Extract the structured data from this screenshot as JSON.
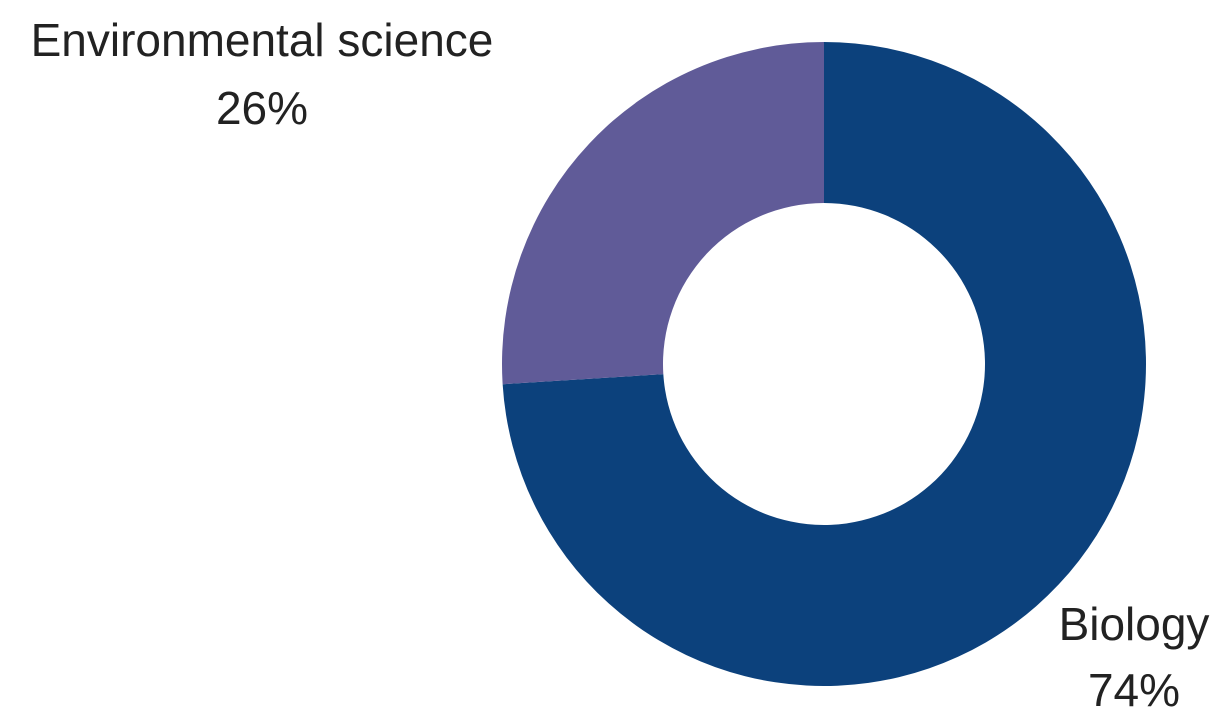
{
  "chart_data": {
    "type": "pie",
    "variant": "donut",
    "title": "",
    "slices": [
      {
        "label": "Biology",
        "value": 74,
        "percent_label": "74%",
        "color": "#0c417c"
      },
      {
        "label": "Environmental science",
        "value": 26,
        "percent_label": "26%",
        "color": "#605b98"
      }
    ],
    "start_angle": "12 o'clock",
    "direction": "clockwise",
    "legend": "none"
  }
}
